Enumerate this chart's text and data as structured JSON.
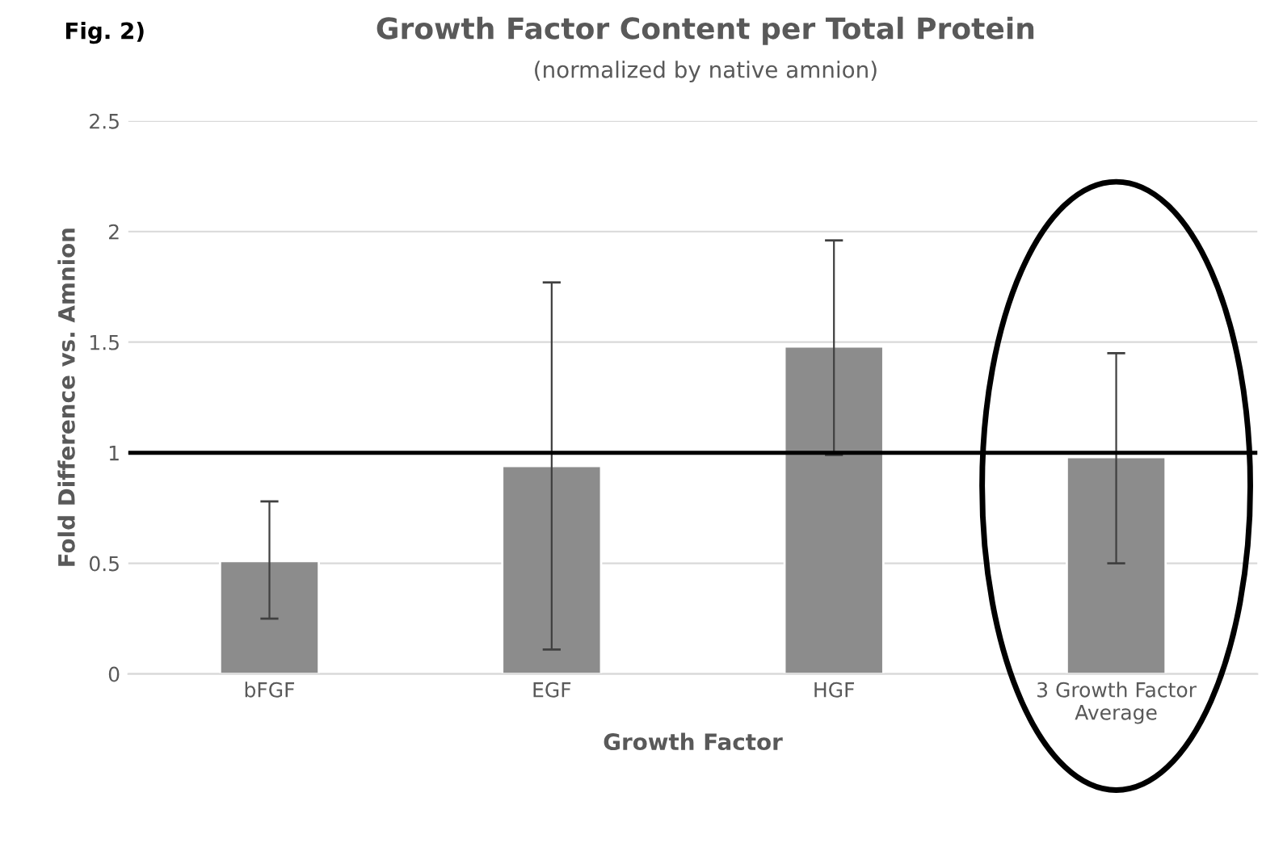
{
  "chart_data": {
    "type": "bar",
    "title": "Growth Factor Content per Total Protein",
    "subtitle": "(normalized by native amnion)",
    "xlabel": "Growth Factor",
    "ylabel": "Fold Difference vs. Amnion",
    "categories": [
      "bFGF",
      "EGF",
      "HGF",
      "3 Growth Factor\nAverage"
    ],
    "values": [
      0.51,
      0.94,
      1.48,
      0.98
    ],
    "color": "#8c8c8c",
    "errors": [
      [
        0.25,
        0.78
      ],
      [
        0.11,
        1.77
      ],
      [
        0.99,
        1.96
      ],
      [
        0.5,
        1.45
      ]
    ],
    "ylim": [
      0,
      2.5
    ],
    "yticks": [
      0,
      0.5,
      1,
      1.5,
      2,
      2.5
    ],
    "grid": "y",
    "ref_lines": [
      {
        "axis": "y",
        "value": 1,
        "color": "#000000"
      }
    ],
    "annotations": [
      "Fig. 2)"
    ]
  }
}
